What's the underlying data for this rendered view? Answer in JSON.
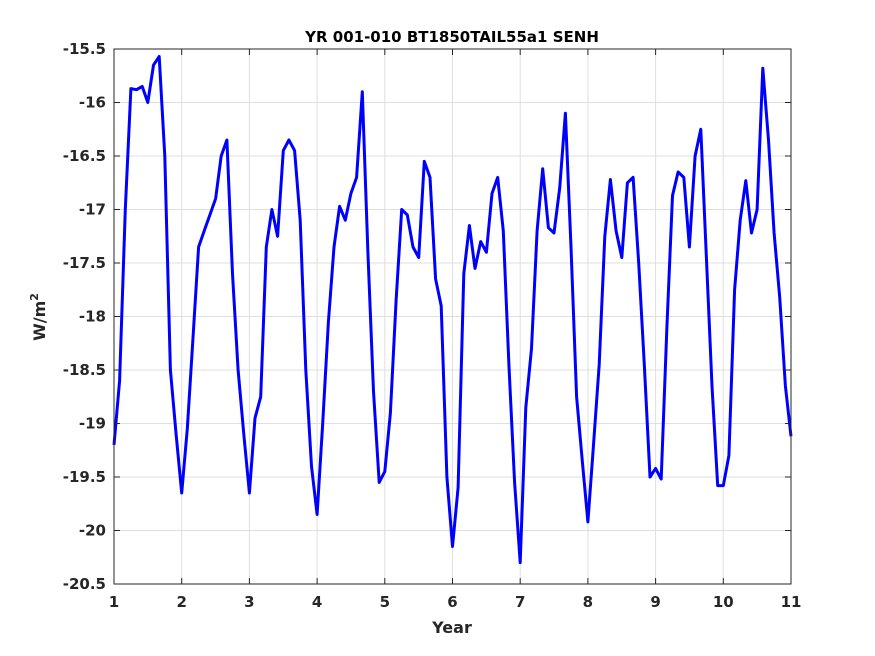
{
  "chart_data": {
    "type": "line",
    "title": "YR 001-010 BT1850TAIL55a1 SENH",
    "xlabel": "Year",
    "ylabel": "W/m",
    "ylabel_superscript": "2",
    "xlim": [
      1,
      11
    ],
    "ylim": [
      -20.5,
      -15.5
    ],
    "xticks": [
      1,
      2,
      3,
      4,
      5,
      6,
      7,
      8,
      9,
      10,
      11
    ],
    "yticks": [
      -15.5,
      -16,
      -16.5,
      -17,
      -17.5,
      -18,
      -18.5,
      -19,
      -19.5,
      -20,
      -20.5
    ],
    "grid": true,
    "series": [
      {
        "color": "#0000ff",
        "x": [
          1.0,
          1.083,
          1.167,
          1.25,
          1.333,
          1.417,
          1.5,
          1.583,
          1.667,
          1.75,
          1.833,
          1.917,
          2.0,
          2.083,
          2.167,
          2.25,
          2.333,
          2.417,
          2.5,
          2.583,
          2.667,
          2.75,
          2.833,
          2.917,
          3.0,
          3.083,
          3.167,
          3.25,
          3.333,
          3.417,
          3.5,
          3.583,
          3.667,
          3.75,
          3.833,
          3.917,
          4.0,
          4.083,
          4.167,
          4.25,
          4.333,
          4.417,
          4.5,
          4.583,
          4.667,
          4.75,
          4.833,
          4.917,
          5.0,
          5.083,
          5.167,
          5.25,
          5.333,
          5.417,
          5.5,
          5.583,
          5.667,
          5.75,
          5.833,
          5.917,
          6.0,
          6.083,
          6.167,
          6.25,
          6.333,
          6.417,
          6.5,
          6.583,
          6.667,
          6.75,
          6.833,
          6.917,
          7.0,
          7.083,
          7.167,
          7.25,
          7.333,
          7.417,
          7.5,
          7.583,
          7.667,
          7.75,
          7.833,
          7.917,
          8.0,
          8.083,
          8.167,
          8.25,
          8.333,
          8.417,
          8.5,
          8.583,
          8.667,
          8.75,
          8.833,
          8.917,
          9.0,
          9.083,
          9.167,
          9.25,
          9.333,
          9.417,
          9.5,
          9.583,
          9.667,
          9.75,
          9.833,
          9.917,
          10.0,
          10.083,
          10.167,
          10.25,
          10.333,
          10.417,
          10.5,
          10.583,
          10.667,
          10.75,
          10.833,
          10.917,
          11.0
        ],
        "y": [
          -19.2,
          -18.6,
          -17.0,
          -15.87,
          -15.88,
          -15.85,
          -16.0,
          -15.65,
          -15.57,
          -16.5,
          -18.5,
          -19.1,
          -19.65,
          -19.05,
          -18.2,
          -17.35,
          -17.2,
          -17.05,
          -16.9,
          -16.5,
          -16.35,
          -17.6,
          -18.5,
          -19.1,
          -19.65,
          -18.95,
          -18.75,
          -17.35,
          -17.0,
          -17.25,
          -16.45,
          -16.35,
          -16.45,
          -17.1,
          -18.5,
          -19.4,
          -19.85,
          -19.0,
          -18.05,
          -17.35,
          -16.97,
          -17.1,
          -16.85,
          -16.7,
          -15.9,
          -17.4,
          -18.7,
          -19.55,
          -19.45,
          -18.9,
          -17.85,
          -17.0,
          -17.05,
          -17.35,
          -17.45,
          -16.55,
          -16.7,
          -17.65,
          -17.9,
          -19.5,
          -20.15,
          -19.6,
          -17.6,
          -17.15,
          -17.55,
          -17.3,
          -17.4,
          -16.85,
          -16.7,
          -17.2,
          -18.45,
          -19.55,
          -20.3,
          -18.85,
          -18.3,
          -17.2,
          -16.62,
          -17.17,
          -17.22,
          -16.8,
          -16.1,
          -17.35,
          -18.75,
          -19.35,
          -19.92,
          -19.2,
          -18.45,
          -17.25,
          -16.72,
          -17.2,
          -17.45,
          -16.75,
          -16.7,
          -17.5,
          -18.45,
          -19.5,
          -19.42,
          -19.52,
          -18.1,
          -16.87,
          -16.65,
          -16.7,
          -17.35,
          -16.5,
          -16.25,
          -17.45,
          -18.65,
          -19.58,
          -19.58,
          -19.3,
          -17.75,
          -17.1,
          -16.73,
          -17.22,
          -17.0,
          -15.68,
          -16.35,
          -17.22,
          -17.82,
          -18.65,
          -19.12
        ]
      }
    ]
  }
}
